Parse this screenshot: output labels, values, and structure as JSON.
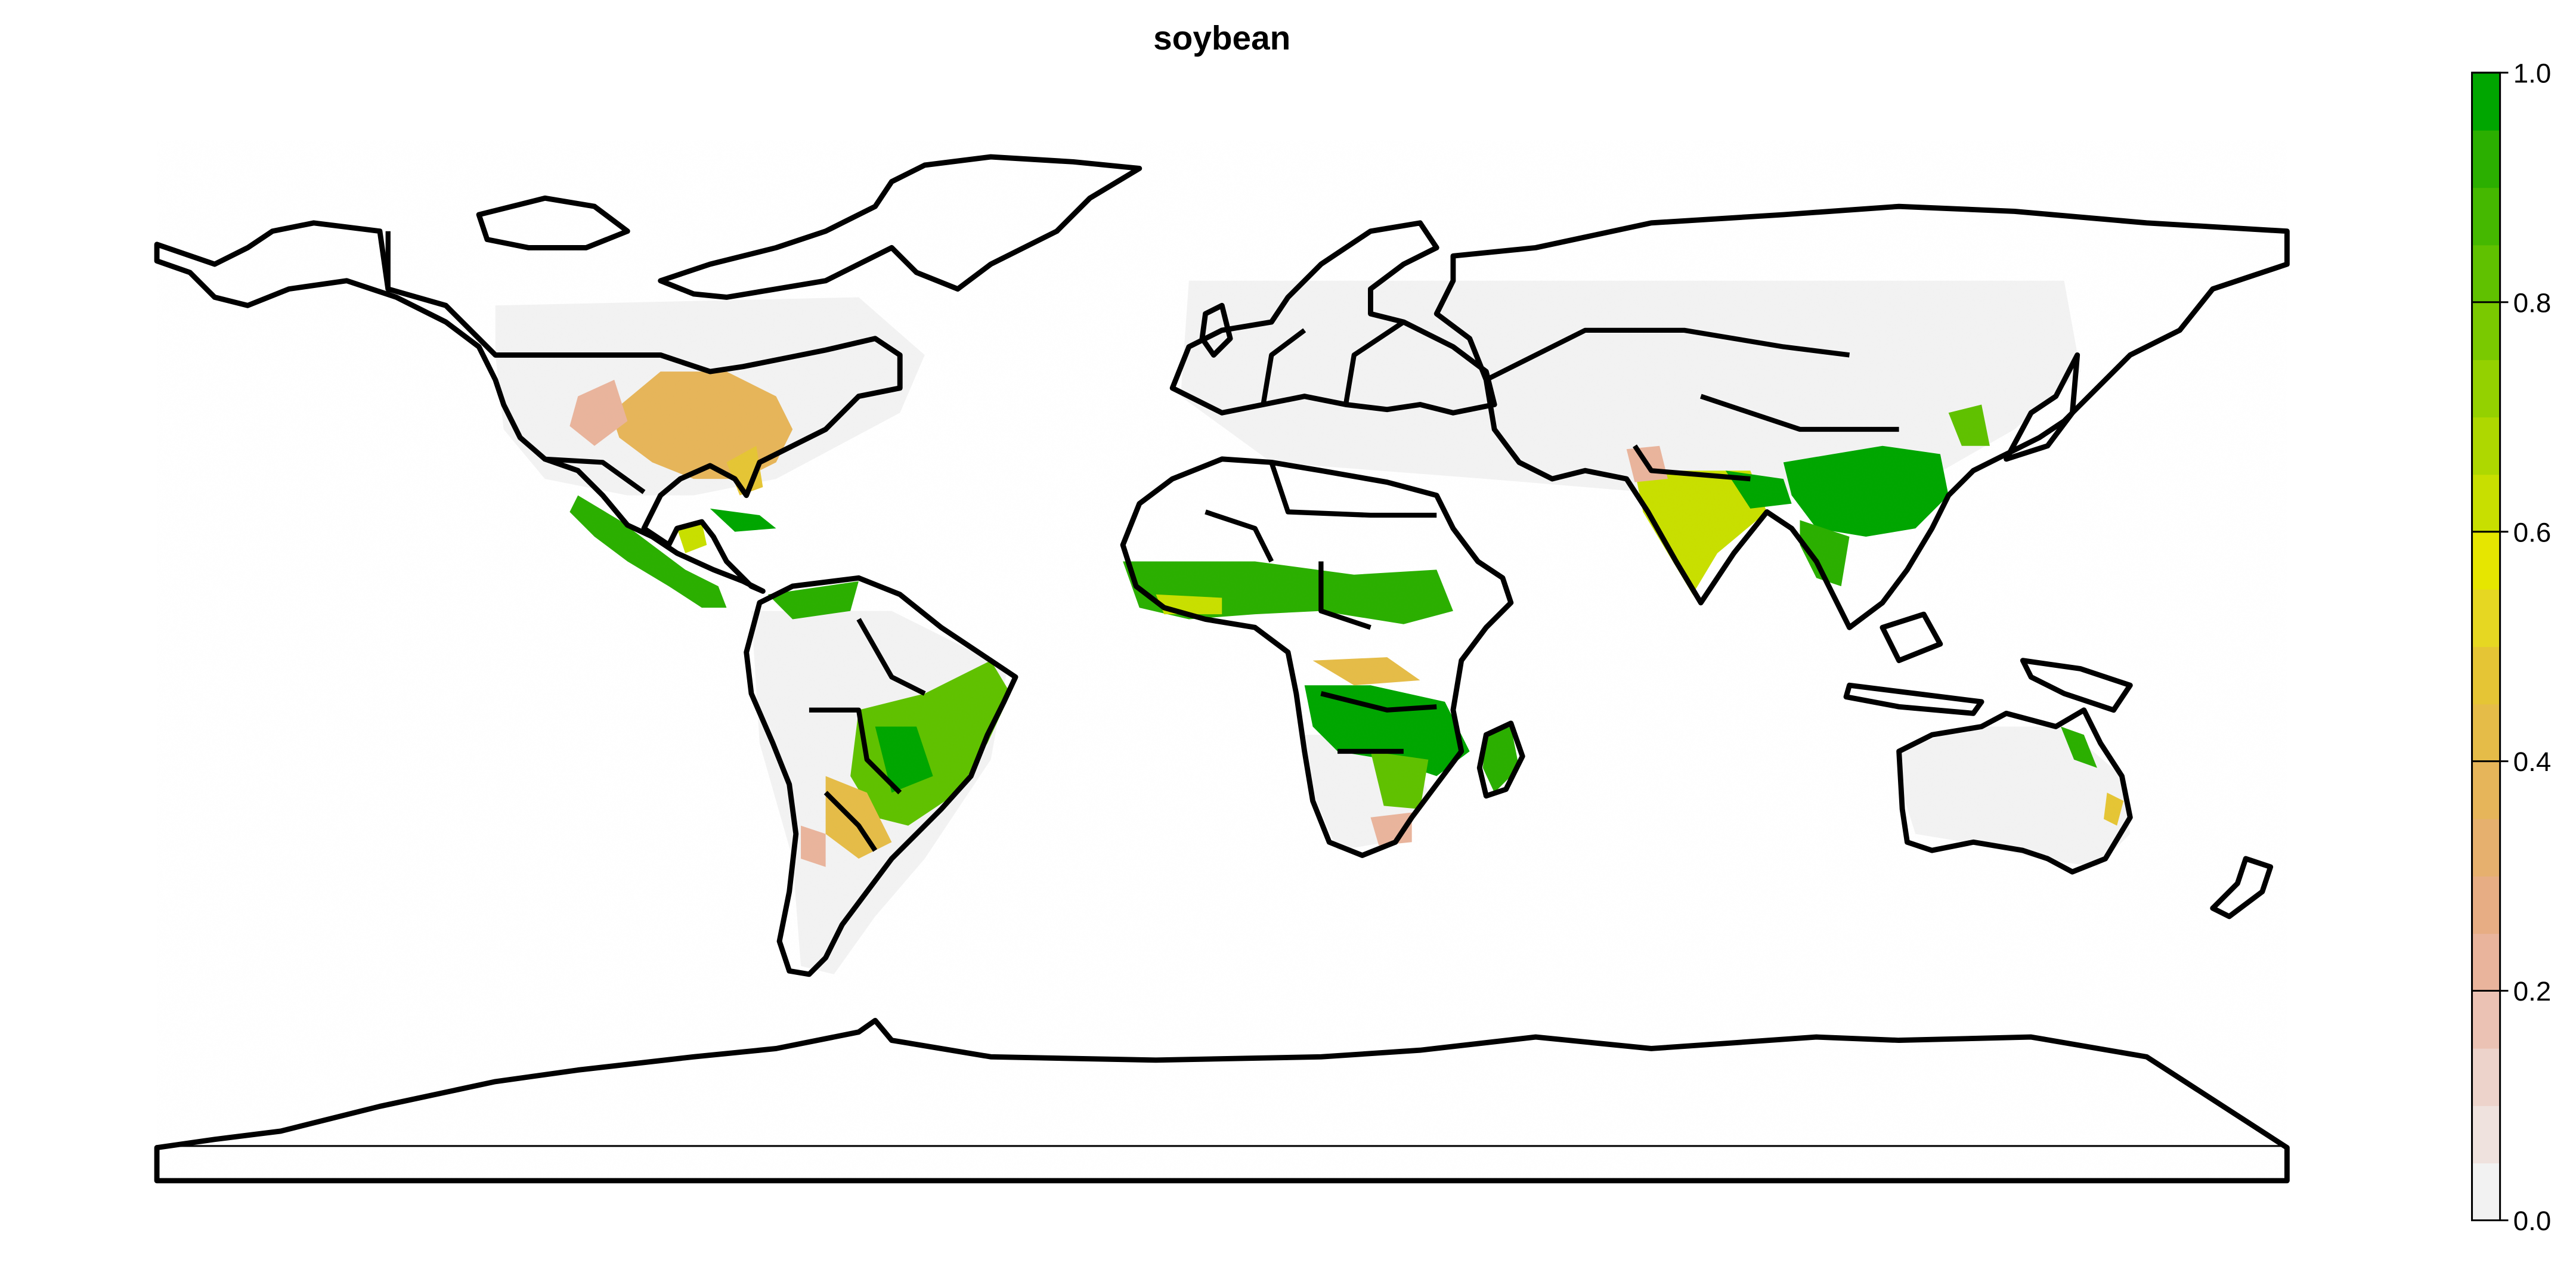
{
  "title": "soybean",
  "legend": {
    "ticks": [
      "0.0",
      "0.2",
      "0.4",
      "0.6",
      "0.8",
      "1.0"
    ],
    "range": [
      0,
      1
    ],
    "colors": [
      {
        "from": 0.0,
        "to": 0.05,
        "color": "#f2f2f2"
      },
      {
        "from": 0.05,
        "to": 0.1,
        "color": "#efe2de"
      },
      {
        "from": 0.1,
        "to": 0.15,
        "color": "#edd3cb"
      },
      {
        "from": 0.15,
        "to": 0.2,
        "color": "#ebc2b4"
      },
      {
        "from": 0.2,
        "to": 0.25,
        "color": "#e9b49c"
      },
      {
        "from": 0.25,
        "to": 0.3,
        "color": "#e7ad84"
      },
      {
        "from": 0.3,
        "to": 0.35,
        "color": "#e6b06e"
      },
      {
        "from": 0.35,
        "to": 0.4,
        "color": "#e6b55a"
      },
      {
        "from": 0.4,
        "to": 0.45,
        "color": "#e5bc48"
      },
      {
        "from": 0.45,
        "to": 0.5,
        "color": "#e5c535"
      },
      {
        "from": 0.5,
        "to": 0.55,
        "color": "#e6d722"
      },
      {
        "from": 0.55,
        "to": 0.6,
        "color": "#e6e600"
      },
      {
        "from": 0.6,
        "to": 0.65,
        "color": "#c8df00"
      },
      {
        "from": 0.65,
        "to": 0.7,
        "color": "#aed800"
      },
      {
        "from": 0.7,
        "to": 0.75,
        "color": "#94d100"
      },
      {
        "from": 0.75,
        "to": 0.8,
        "color": "#7ac900"
      },
      {
        "from": 0.8,
        "to": 0.85,
        "color": "#60c100"
      },
      {
        "from": 0.85,
        "to": 0.9,
        "color": "#45b800"
      },
      {
        "from": 0.9,
        "to": 0.95,
        "color": "#2baf00"
      },
      {
        "from": 0.95,
        "to": 1.0,
        "color": "#00a600"
      }
    ]
  },
  "palette": {
    "background": "#ffffff",
    "outline": "#000000",
    "nodata": "#f2f2f2"
  }
}
